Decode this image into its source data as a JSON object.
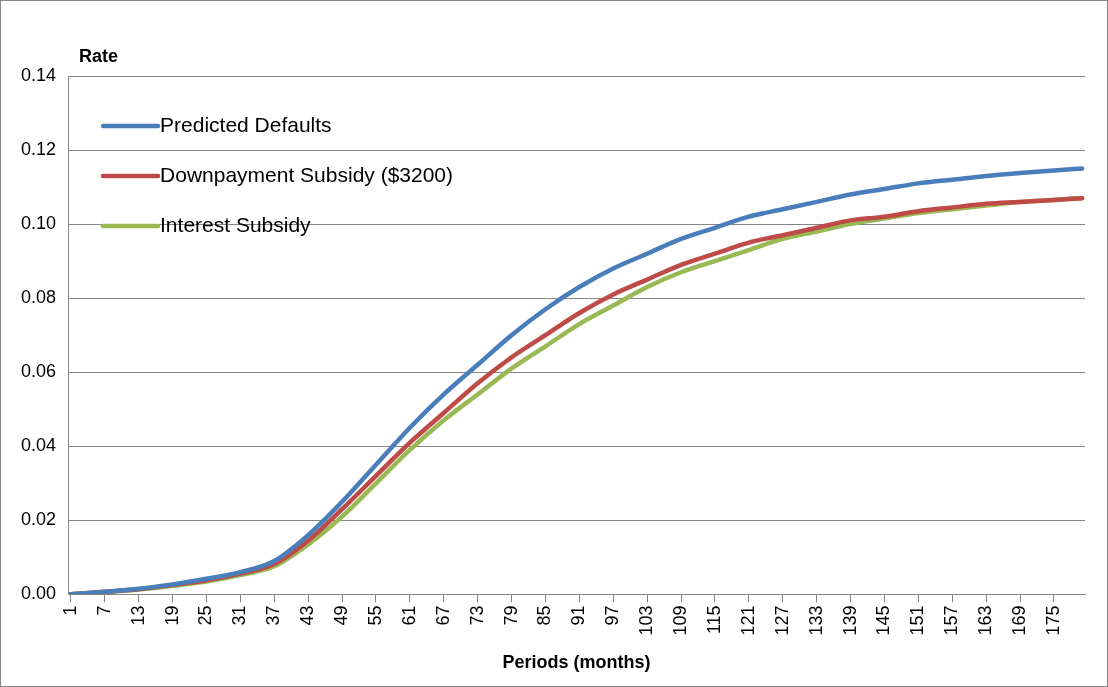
{
  "chart_data": {
    "type": "line",
    "ylabel": "Rate",
    "xlabel": "Periods (months)",
    "xlim": [
      0.5,
      180.5
    ],
    "xticks": [
      1,
      7,
      13,
      19,
      25,
      31,
      37,
      43,
      49,
      55,
      61,
      67,
      73,
      79,
      85,
      91,
      97,
      103,
      109,
      115,
      121,
      127,
      133,
      139,
      145,
      151,
      157,
      163,
      169,
      175
    ],
    "ylim": [
      0,
      0.14
    ],
    "yticks": [
      {
        "value": 0,
        "label": "0.00"
      },
      {
        "value": 0.02,
        "label": "0.02"
      },
      {
        "value": 0.04,
        "label": "0.04"
      },
      {
        "value": 0.06,
        "label": "0.06"
      },
      {
        "value": 0.08,
        "label": "0.08"
      },
      {
        "value": 0.1,
        "label": "0.10"
      },
      {
        "value": 0.12,
        "label": "0.12"
      },
      {
        "value": 0.14,
        "label": "0.14"
      }
    ],
    "grid": "y",
    "legend": "top left",
    "marker": "none",
    "line_style": "solid",
    "series": [
      {
        "name": "Predicted Defaults",
        "color": "#4a7ebb",
        "x": [
          1,
          7,
          13,
          19,
          25,
          31,
          37,
          43,
          49,
          55,
          61,
          67,
          73,
          79,
          85,
          91,
          97,
          103,
          109,
          115,
          121,
          127,
          133,
          139,
          145,
          151,
          157,
          163,
          169,
          175,
          180
        ],
        "values": [
          0,
          0.0007,
          0.0015,
          0.0027,
          0.0042,
          0.006,
          0.009,
          0.016,
          0.025,
          0.035,
          0.045,
          0.054,
          0.062,
          0.07,
          0.077,
          0.083,
          0.088,
          0.092,
          0.096,
          0.099,
          0.102,
          0.104,
          0.106,
          0.108,
          0.1095,
          0.111,
          0.112,
          0.113,
          0.1138,
          0.1145,
          0.115
        ]
      },
      {
        "name": "Downpayment Subsidy ($3200)",
        "color": "#be4b48",
        "x": [
          1,
          7,
          13,
          19,
          25,
          31,
          37,
          43,
          49,
          55,
          61,
          67,
          73,
          79,
          85,
          91,
          97,
          103,
          109,
          115,
          121,
          127,
          133,
          139,
          145,
          151,
          157,
          163,
          169,
          175,
          180
        ],
        "values": [
          0,
          0.0007,
          0.0014,
          0.0025,
          0.0038,
          0.0056,
          0.0082,
          0.0145,
          0.023,
          0.032,
          0.041,
          0.049,
          0.057,
          0.064,
          0.07,
          0.076,
          0.081,
          0.085,
          0.089,
          0.092,
          0.095,
          0.097,
          0.099,
          0.101,
          0.102,
          0.1035,
          0.1045,
          0.1055,
          0.106,
          0.1065,
          0.107
        ]
      },
      {
        "name": "Interest Subsidy",
        "color": "#98b954",
        "x": [
          1,
          7,
          13,
          19,
          25,
          31,
          37,
          43,
          49,
          55,
          61,
          67,
          73,
          79,
          85,
          91,
          97,
          103,
          109,
          115,
          121,
          127,
          133,
          139,
          145,
          151,
          157,
          163,
          169,
          175,
          180
        ],
        "values": [
          0,
          0.0006,
          0.0013,
          0.0023,
          0.0035,
          0.0052,
          0.0076,
          0.0135,
          0.021,
          0.03,
          0.039,
          0.047,
          0.054,
          0.061,
          0.067,
          0.073,
          0.078,
          0.083,
          0.087,
          0.09,
          0.093,
          0.096,
          0.098,
          0.1,
          0.1015,
          0.103,
          0.104,
          0.105,
          0.106,
          0.1065,
          0.107
        ]
      }
    ]
  }
}
